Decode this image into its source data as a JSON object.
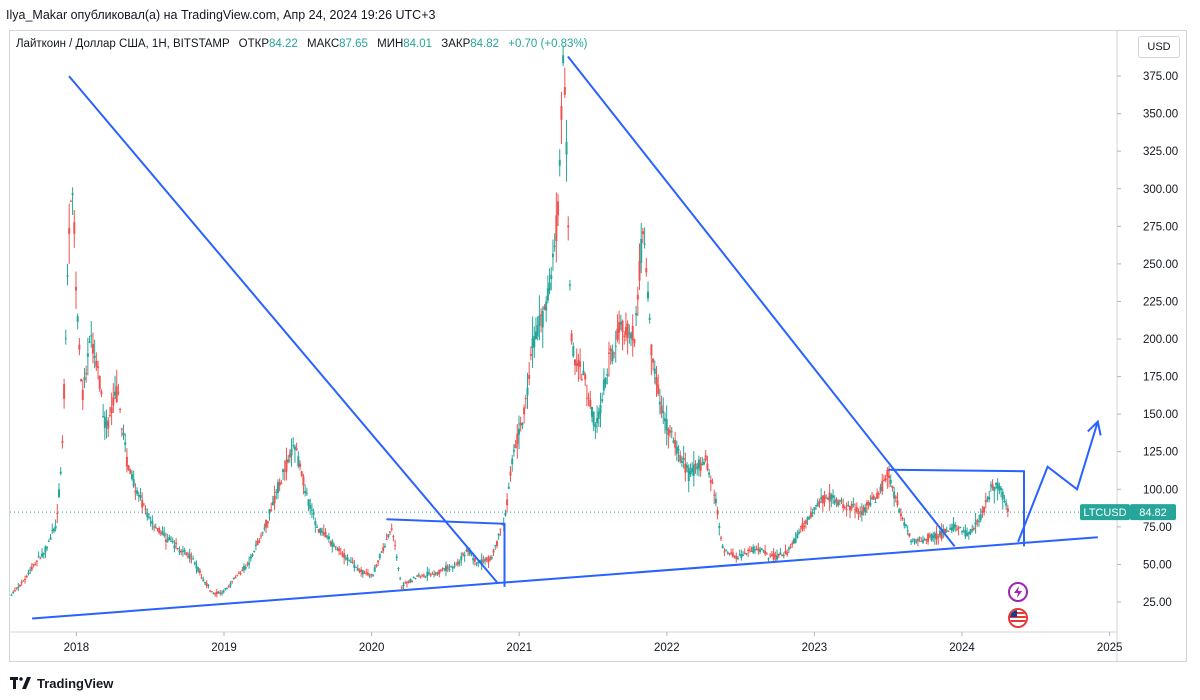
{
  "header": {
    "attribution": "Ilya_Makar опубликовал(а) на TradingView.com, Апр 24, 2024 19:26 UTC+3"
  },
  "legend": {
    "symbol": "Лайткоин / Доллар США, 1Н, BITSTAMP",
    "open_label": "ОТКР",
    "open_value": "84.22",
    "high_label": "МАКС",
    "high_value": "87.65",
    "low_label": "МИН",
    "low_value": "84.01",
    "close_label": "ЗАКР",
    "close_value": "84.82",
    "change": "+0.70 (+0.83%)"
  },
  "currency_button": "USD",
  "price_tag": {
    "symbol": "LTCUSD",
    "value": "84.82"
  },
  "footer": {
    "brand": "TradingView"
  },
  "icons": [
    "lightning-icon",
    "us-flag-icon",
    "tradingview-logo-icon"
  ],
  "colors": {
    "up": "#26a69a",
    "down": "#ef5350",
    "drawing": "#2962ff",
    "tag": "#26a69a"
  },
  "chart_data": {
    "type": "candlestick",
    "symbol": "LTCUSD",
    "x_ticks": [
      "2018",
      "2019",
      "2020",
      "2021",
      "2022",
      "2023",
      "2024",
      "2025"
    ],
    "y_ticks": [
      25,
      50,
      75,
      100,
      125,
      150,
      175,
      200,
      225,
      250,
      275,
      300,
      325,
      350,
      375
    ],
    "ylim": [
      5,
      405
    ],
    "xlim": [
      2017.55,
      2025.05
    ],
    "last_price": 84.82,
    "price_series": [
      [
        2017.56,
        30
      ],
      [
        2017.62,
        36
      ],
      [
        2017.7,
        48
      ],
      [
        2017.78,
        58
      ],
      [
        2017.86,
        75
      ],
      [
        2017.9,
        115
      ],
      [
        2017.94,
        240
      ],
      [
        2017.97,
        315
      ],
      [
        2018.0,
        230
      ],
      [
        2018.04,
        160
      ],
      [
        2018.1,
        200
      ],
      [
        2018.15,
        175
      ],
      [
        2018.2,
        140
      ],
      [
        2018.28,
        165
      ],
      [
        2018.34,
        120
      ],
      [
        2018.42,
        95
      ],
      [
        2018.5,
        80
      ],
      [
        2018.6,
        68
      ],
      [
        2018.7,
        60
      ],
      [
        2018.78,
        55
      ],
      [
        2018.86,
        40
      ],
      [
        2018.93,
        30
      ],
      [
        2019.0,
        32
      ],
      [
        2019.08,
        42
      ],
      [
        2019.16,
        50
      ],
      [
        2019.26,
        70
      ],
      [
        2019.36,
        100
      ],
      [
        2019.44,
        120
      ],
      [
        2019.48,
        130
      ],
      [
        2019.55,
        100
      ],
      [
        2019.63,
        75
      ],
      [
        2019.72,
        65
      ],
      [
        2019.82,
        55
      ],
      [
        2019.93,
        45
      ],
      [
        2020.0,
        42
      ],
      [
        2020.1,
        65
      ],
      [
        2020.14,
        75
      ],
      [
        2020.2,
        35
      ],
      [
        2020.3,
        42
      ],
      [
        2020.45,
        45
      ],
      [
        2020.58,
        50
      ],
      [
        2020.65,
        60
      ],
      [
        2020.72,
        50
      ],
      [
        2020.82,
        55
      ],
      [
        2020.9,
        80
      ],
      [
        2020.97,
        130
      ],
      [
        2021.03,
        150
      ],
      [
        2021.1,
        200
      ],
      [
        2021.18,
        220
      ],
      [
        2021.26,
        280
      ],
      [
        2021.3,
        385
      ],
      [
        2021.36,
        190
      ],
      [
        2021.44,
        175
      ],
      [
        2021.52,
        140
      ],
      [
        2021.6,
        180
      ],
      [
        2021.68,
        210
      ],
      [
        2021.78,
        200
      ],
      [
        2021.84,
        275
      ],
      [
        2021.9,
        190
      ],
      [
        2021.97,
        150
      ],
      [
        2022.05,
        130
      ],
      [
        2022.15,
        110
      ],
      [
        2022.26,
        120
      ],
      [
        2022.32,
        100
      ],
      [
        2022.38,
        60
      ],
      [
        2022.48,
        55
      ],
      [
        2022.6,
        60
      ],
      [
        2022.72,
        55
      ],
      [
        2022.82,
        58
      ],
      [
        2022.92,
        75
      ],
      [
        2023.02,
        90
      ],
      [
        2023.1,
        95
      ],
      [
        2023.2,
        90
      ],
      [
        2023.32,
        85
      ],
      [
        2023.42,
        95
      ],
      [
        2023.5,
        110
      ],
      [
        2023.56,
        90
      ],
      [
        2023.66,
        65
      ],
      [
        2023.78,
        68
      ],
      [
        2023.86,
        70
      ],
      [
        2023.94,
        75
      ],
      [
        2024.04,
        70
      ],
      [
        2024.12,
        80
      ],
      [
        2024.2,
        100
      ],
      [
        2024.24,
        105
      ],
      [
        2024.3,
        90
      ],
      [
        2024.32,
        84.82
      ]
    ],
    "drawings": {
      "descending_line_1": [
        [
          2017.95,
          375
        ],
        [
          2020.85,
          38
        ]
      ],
      "flag_2020": [
        [
          2020.1,
          80
        ],
        [
          2020.9,
          77
        ],
        [
          2020.9,
          35
        ]
      ],
      "descending_line_2": [
        [
          2021.33,
          388
        ],
        [
          2023.95,
          62
        ]
      ],
      "box_2023": [
        [
          2023.5,
          113
        ],
        [
          2024.42,
          112
        ],
        [
          2024.42,
          62
        ]
      ],
      "support_line": [
        [
          2017.7,
          14
        ],
        [
          2024.92,
          68
        ]
      ],
      "projection": [
        [
          2024.38,
          65
        ],
        [
          2024.58,
          115
        ],
        [
          2024.78,
          100
        ],
        [
          2024.92,
          145
        ]
      ]
    },
    "grid": false,
    "legend_position": "top-left"
  }
}
